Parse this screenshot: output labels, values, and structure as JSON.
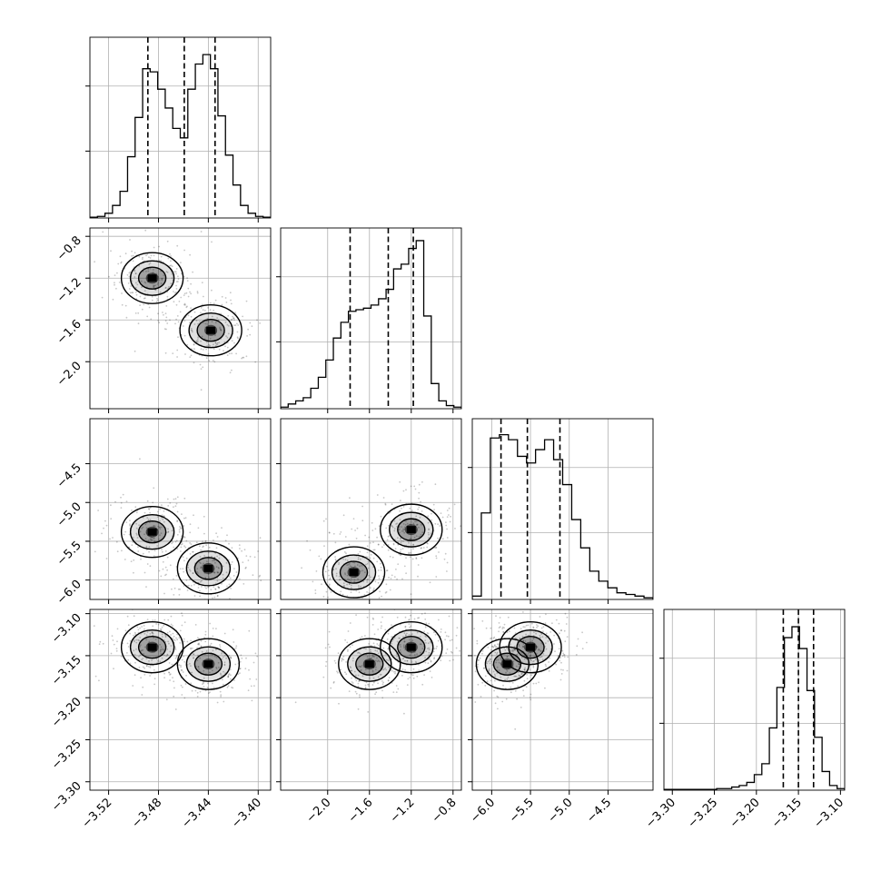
{
  "chart_data": {
    "type": "corner",
    "n_params": 4,
    "params": [
      {
        "range": [
          -3.535,
          -3.39
        ],
        "ticks": [
          -3.52,
          -3.48,
          -3.44,
          -3.4
        ],
        "tick_labels": [
          "−3.52",
          "−3.48",
          "−3.44",
          "−3.40"
        ],
        "quantiles": [
          -3.4885,
          -3.4593,
          -3.4346
        ]
      },
      {
        "range": [
          -2.45,
          -0.72
        ],
        "ticks": [
          -2.0,
          -1.6,
          -1.2,
          -0.8
        ],
        "tick_labels": [
          "−2.0",
          "−1.6",
          "−1.2",
          "−0.8"
        ],
        "quantiles": [
          -1.785,
          -1.42,
          -1.18
        ]
      },
      {
        "range": [
          -6.25,
          -3.92
        ],
        "ticks": [
          -6.0,
          -5.5,
          -5.0,
          -4.5
        ],
        "tick_labels": [
          "−6.0",
          "−5.5",
          "−5.0",
          "−4.5"
        ],
        "quantiles": [
          -5.88,
          -5.54,
          -5.12
        ]
      },
      {
        "range": [
          -3.31,
          -3.095
        ],
        "ticks": [
          -3.3,
          -3.25,
          -3.2,
          -3.15,
          -3.1
        ],
        "tick_labels": [
          "−3.30",
          "−3.25",
          "−3.20",
          "−3.15",
          "−3.10"
        ],
        "quantiles": [
          -3.168,
          -3.15,
          -3.132
        ]
      }
    ],
    "histograms": [
      [
        0.005,
        0.01,
        0.03,
        0.08,
        0.17,
        0.39,
        0.64,
        0.95,
        0.93,
        0.82,
        0.7,
        0.57,
        0.51,
        0.82,
        0.98,
        1.04,
        0.95,
        0.65,
        0.4,
        0.21,
        0.08,
        0.03,
        0.01,
        0.005
      ],
      [
        0.01,
        0.03,
        0.05,
        0.07,
        0.13,
        0.2,
        0.31,
        0.45,
        0.55,
        0.62,
        0.63,
        0.64,
        0.66,
        0.7,
        0.76,
        0.89,
        0.92,
        1.02,
        1.07,
        0.59,
        0.16,
        0.05,
        0.02,
        0.01
      ],
      [
        0.02,
        0.52,
        0.97,
        0.99,
        0.96,
        0.86,
        0.82,
        0.9,
        0.96,
        0.84,
        0.69,
        0.48,
        0.31,
        0.17,
        0.11,
        0.07,
        0.04,
        0.03,
        0.02,
        0.01
      ],
      [
        0.005,
        0.005,
        0.005,
        0.005,
        0.005,
        0.005,
        0.005,
        0.01,
        0.01,
        0.02,
        0.03,
        0.05,
        0.1,
        0.17,
        0.4,
        0.66,
        0.98,
        1.05,
        0.91,
        0.64,
        0.34,
        0.12,
        0.03,
        0.01
      ]
    ],
    "hist_max": [
      1.07,
      1.07,
      1.01,
      1.08
    ],
    "pairs": [
      {
        "row": 1,
        "col": 0,
        "peaks": [
          [
            -3.485,
            -1.2
          ],
          [
            -3.438,
            -1.7
          ]
        ]
      },
      {
        "row": 2,
        "col": 0,
        "peaks": [
          [
            -3.485,
            -5.38
          ],
          [
            -3.44,
            -5.85
          ]
        ]
      },
      {
        "row": 2,
        "col": 1,
        "peaks": [
          [
            -1.75,
            -5.9
          ],
          [
            -1.2,
            -5.35
          ]
        ]
      },
      {
        "row": 3,
        "col": 0,
        "peaks": [
          [
            -3.485,
            -3.14
          ],
          [
            -3.44,
            -3.16
          ]
        ]
      },
      {
        "row": 3,
        "col": 1,
        "peaks": [
          [
            -1.6,
            -3.16
          ],
          [
            -1.2,
            -3.14
          ]
        ]
      },
      {
        "row": 3,
        "col": 2,
        "peaks": [
          [
            -5.8,
            -3.16
          ],
          [
            -5.5,
            -3.14
          ]
        ]
      }
    ],
    "grid": true,
    "colors": {
      "line": "#000000",
      "grid": "#b0b0b0",
      "points": "#000000",
      "density": "#000000"
    }
  }
}
